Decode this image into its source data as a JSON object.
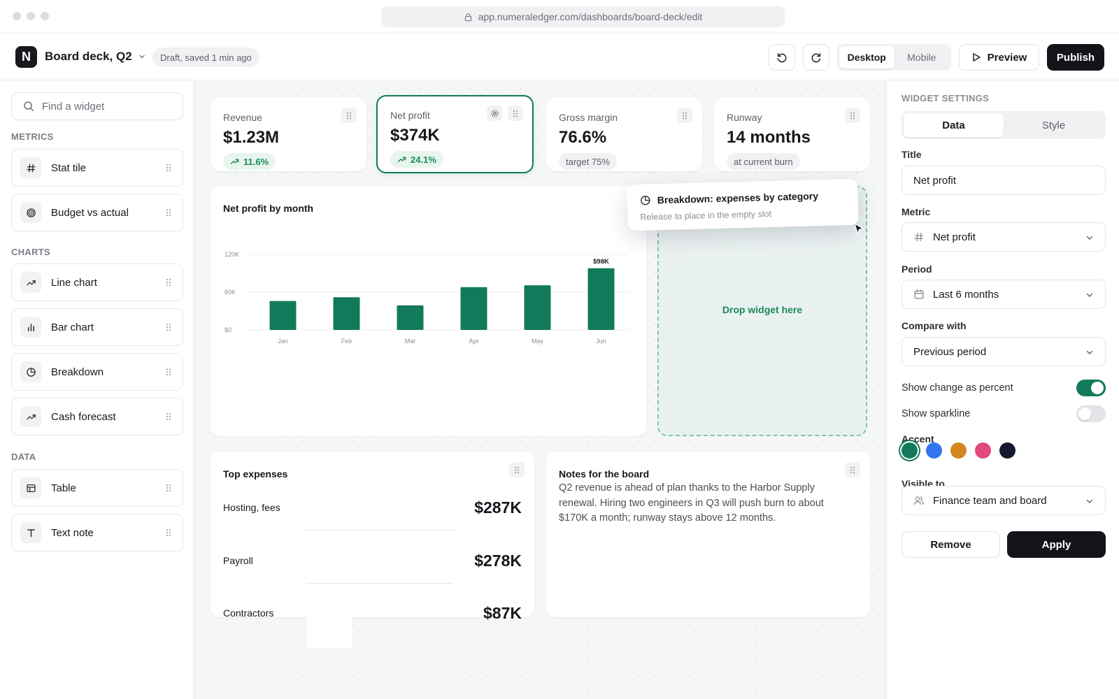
{
  "browser": {
    "url": "app.numeraledger.com/dashboards/board-deck/edit"
  },
  "header": {
    "logo_letter": "N",
    "doc_title": "Board deck, Q2",
    "draft_status": "Draft, saved 1 min ago",
    "view_modes": [
      "Desktop",
      "Mobile"
    ],
    "active_view": "Desktop",
    "preview_label": "Preview",
    "publish_label": "Publish"
  },
  "sidebar": {
    "search_placeholder": "Find a widget",
    "sections": [
      {
        "label": "METRICS",
        "items": [
          {
            "label": "Stat tile",
            "icon": "hash-icon"
          },
          {
            "label": "Budget vs actual",
            "icon": "target-icon"
          }
        ]
      },
      {
        "label": "CHARTS",
        "items": [
          {
            "label": "Line chart",
            "icon": "trend-icon"
          },
          {
            "label": "Bar chart",
            "icon": "bar-chart-icon"
          },
          {
            "label": "Breakdown",
            "icon": "pie-icon"
          },
          {
            "label": "Cash forecast",
            "icon": "trend-icon"
          }
        ]
      },
      {
        "label": "DATA",
        "items": [
          {
            "label": "Table",
            "icon": "table-icon"
          },
          {
            "label": "Text note",
            "icon": "text-icon"
          }
        ]
      }
    ]
  },
  "stats": [
    {
      "label": "Revenue",
      "value": "$1.23M",
      "pill": "11.6%",
      "pill_style": "up"
    },
    {
      "label": "Net profit",
      "value": "$374K",
      "pill": "24.1%",
      "pill_style": "up",
      "selected": true
    },
    {
      "label": "Gross margin",
      "value": "76.6%",
      "pill": "target 75%",
      "pill_style": "neutral"
    },
    {
      "label": "Runway",
      "value": "14 months",
      "pill": "at current burn",
      "pill_style": "neutral"
    }
  ],
  "chart_card": {
    "title": "Net profit by month"
  },
  "chart_data": {
    "type": "bar",
    "categories": [
      "Jan",
      "Feb",
      "Mar",
      "Apr",
      "May",
      "Jun"
    ],
    "values": [
      46,
      52,
      39,
      68,
      71,
      98
    ],
    "units": "K",
    "ylim": [
      0,
      120
    ],
    "yticks": [
      "$0",
      "60K",
      "120K"
    ],
    "ytick_values": [
      0,
      60,
      120
    ],
    "annotation": {
      "category": "Jun",
      "text": "$98K"
    },
    "color": "#127a5a",
    "grid": true
  },
  "drop_zone": {
    "text": "Drop widget here"
  },
  "drag_ghost": {
    "title": "Breakdown: expenses by category",
    "subtitle": "Release to place in the empty slot",
    "icon": "pie-icon"
  },
  "expenses": {
    "title": "Top expenses",
    "rows": [
      {
        "name": "Hosting, fees",
        "value": "$287K"
      },
      {
        "name": "Payroll",
        "value": "$278K"
      },
      {
        "name": "Contractors",
        "value": "$87K"
      }
    ]
  },
  "notes": {
    "title": "Notes for the board",
    "text": "Q2 revenue is ahead of plan thanks to the Harbor Supply renewal. Hiring two engineers in Q3 will push burn to about $170K a month; runway stays above 12 months."
  },
  "panel": {
    "heading": "WIDGET SETTINGS",
    "tabs": [
      "Data",
      "Style"
    ],
    "active_tab": "Data",
    "title_label": "Title",
    "title_value": "Net profit",
    "metric_label": "Metric",
    "metric_value": "Net profit",
    "period_label": "Period",
    "period_value": "Last 6 months",
    "compare_label": "Compare with",
    "compare_value": "Previous period",
    "toggle_percent_label": "Show change as percent",
    "toggle_percent_on": true,
    "toggle_sparkline_label": "Show sparkline",
    "toggle_sparkline_on": false,
    "accent_label": "Accent",
    "accents": [
      "#127a5a",
      "#3375f0",
      "#d4871e",
      "#e2497c",
      "#161a2c"
    ],
    "accent_selected": 0,
    "visible_label": "Visible to",
    "visible_value": "Finance team and board",
    "remove_label": "Remove",
    "apply_label": "Apply"
  }
}
